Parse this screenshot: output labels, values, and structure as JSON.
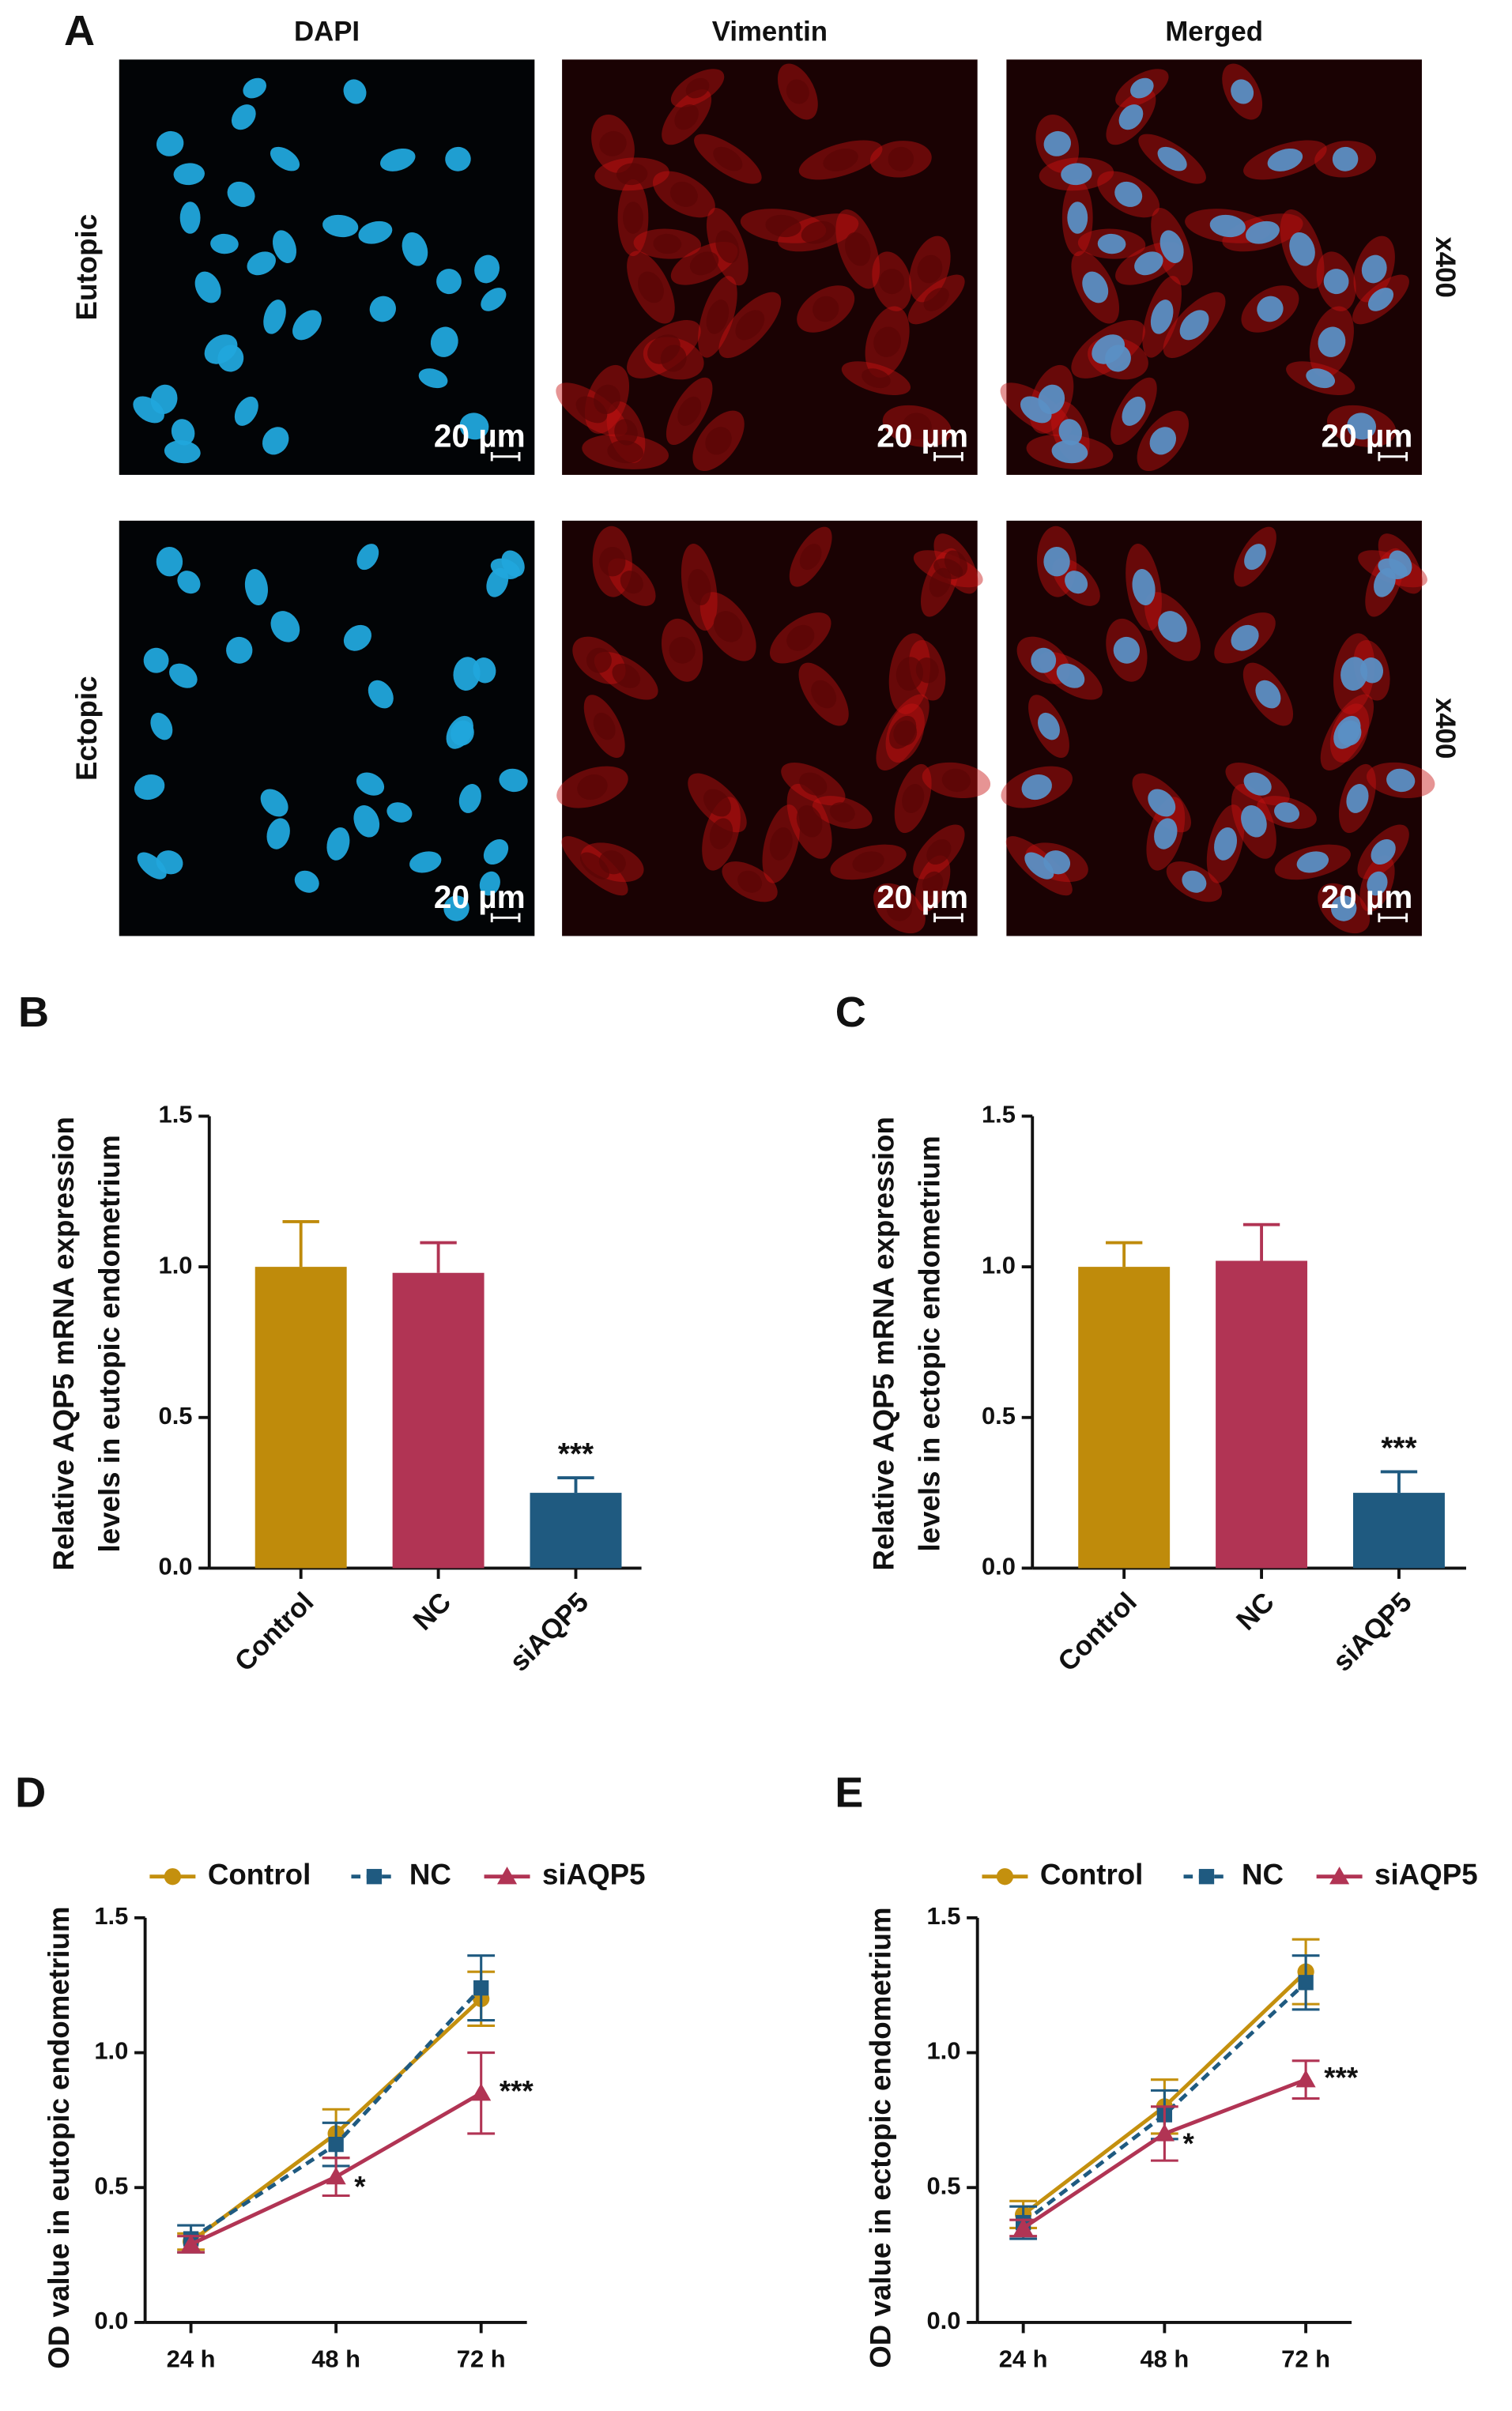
{
  "panel_a": {
    "label": "A",
    "columns": [
      "DAPI",
      "Vimentin",
      "Merged"
    ],
    "rows": [
      "Eutopic",
      "Ectopic"
    ],
    "magnification": "x400",
    "scale_bar": "20 µm"
  },
  "chart_data": [
    {
      "type": "bar",
      "panel_label": "B",
      "ylabel": [
        "Relative AQP5 mRNA expression",
        "levels in eutopic endometrium"
      ],
      "categories": [
        "Control",
        "NC",
        "siAQP5"
      ],
      "values": [
        1.0,
        0.98,
        0.25
      ],
      "errors": [
        0.15,
        0.1,
        0.05
      ],
      "colors": [
        "#bf8b0b",
        "#b13454",
        "#1f5a80"
      ],
      "annotations": [
        null,
        null,
        "***"
      ],
      "ylim": [
        0,
        1.5
      ],
      "yticks": [
        {
          "value": 0,
          "label": "0.0"
        },
        0.5,
        {
          "value": 1,
          "label": "1.0"
        },
        1.5
      ]
    },
    {
      "type": "bar",
      "panel_label": "C",
      "ylabel": [
        "Relative AQP5 mRNA expression",
        "levels in ectopic endometrium"
      ],
      "categories": [
        "Control",
        "NC",
        "siAQP5"
      ],
      "values": [
        1.0,
        1.02,
        0.25
      ],
      "errors": [
        0.08,
        0.12,
        0.07
      ],
      "colors": [
        "#bf8b0b",
        "#b13454",
        "#1f5a80"
      ],
      "annotations": [
        null,
        null,
        "***"
      ],
      "ylim": [
        0,
        1.5
      ],
      "yticks": [
        {
          "value": 0,
          "label": "0.0"
        },
        0.5,
        {
          "value": 1,
          "label": "1.0"
        },
        1.5
      ]
    },
    {
      "type": "line",
      "panel_label": "D",
      "ylabel": [
        "OD value in eutopic endometrium"
      ],
      "categories": [
        "24 h",
        "48 h",
        "72 h"
      ],
      "series": [
        {
          "name": "Control",
          "color": "#c4900e",
          "marker": "circle",
          "dashed": false,
          "values": [
            0.3,
            0.7,
            1.2
          ],
          "errors": [
            0.03,
            0.09,
            0.1
          ],
          "annotations": [
            null,
            null,
            null
          ]
        },
        {
          "name": "NC",
          "color": "#1f5a80",
          "marker": "square",
          "dashed": true,
          "values": [
            0.31,
            0.66,
            1.24
          ],
          "errors": [
            0.05,
            0.08,
            0.12
          ],
          "annotations": [
            null,
            null,
            null
          ]
        },
        {
          "name": "siAQP5",
          "color": "#b13454",
          "marker": "triangle",
          "dashed": false,
          "values": [
            0.29,
            0.54,
            0.85
          ],
          "errors": [
            0.03,
            0.07,
            0.15
          ],
          "annotations": [
            null,
            "*",
            "***"
          ]
        }
      ],
      "ylim": [
        0,
        1.5
      ],
      "yticks": [
        {
          "value": 0,
          "label": "0.0"
        },
        0.5,
        {
          "value": 1,
          "label": "1.0"
        },
        1.5
      ]
    },
    {
      "type": "line",
      "panel_label": "E",
      "ylabel": [
        "OD value in ectopic endometrium"
      ],
      "categories": [
        "24 h",
        "48 h",
        "72 h"
      ],
      "series": [
        {
          "name": "Control",
          "color": "#c4900e",
          "marker": "circle",
          "dashed": false,
          "values": [
            0.4,
            0.8,
            1.3
          ],
          "errors": [
            0.05,
            0.1,
            0.12
          ],
          "annotations": [
            null,
            null,
            null
          ]
        },
        {
          "name": "NC",
          "color": "#1f5a80",
          "marker": "square",
          "dashed": true,
          "values": [
            0.37,
            0.77,
            1.26
          ],
          "errors": [
            0.06,
            0.09,
            0.1
          ],
          "annotations": [
            null,
            null,
            null
          ]
        },
        {
          "name": "siAQP5",
          "color": "#b13454",
          "marker": "triangle",
          "dashed": false,
          "values": [
            0.35,
            0.7,
            0.9
          ],
          "errors": [
            0.03,
            0.1,
            0.07
          ],
          "annotations": [
            null,
            "*",
            "***"
          ]
        }
      ],
      "ylim": [
        0,
        1.5
      ],
      "yticks": [
        {
          "value": 0,
          "label": "0.0"
        },
        0.5,
        {
          "value": 1,
          "label": "1.0"
        },
        1.5
      ]
    }
  ]
}
